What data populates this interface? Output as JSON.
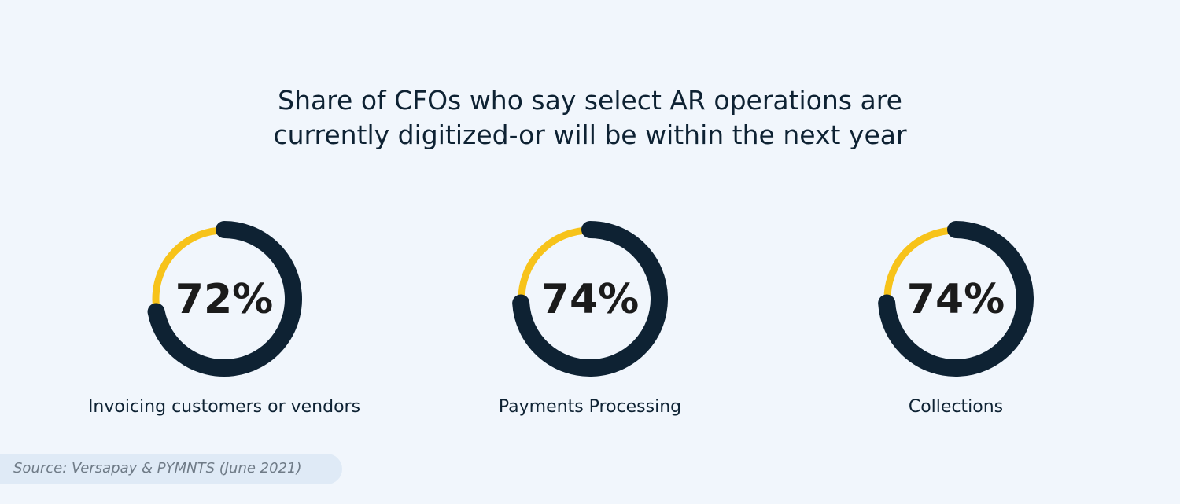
{
  "title_lines": [
    "Share of CFOs who say select AR operations are",
    "currently digitized-or will be within the next year"
  ],
  "colors": {
    "background": "#f1f6fc",
    "primary": "#0e2233",
    "accent": "#f7c31a",
    "source_bg": "#dfeaf6"
  },
  "chart_data": [
    {
      "type": "pie",
      "title": "Invoicing customers or vendors",
      "value": 72,
      "value_label": "72%",
      "max": 100
    },
    {
      "type": "pie",
      "title": "Payments Processing",
      "value": 74,
      "value_label": "74%",
      "max": 100
    },
    {
      "type": "pie",
      "title": "Collections",
      "value": 74,
      "value_label": "74%",
      "max": 100
    }
  ],
  "source": "Source: Versapay & PYMNTS (June 2021)"
}
